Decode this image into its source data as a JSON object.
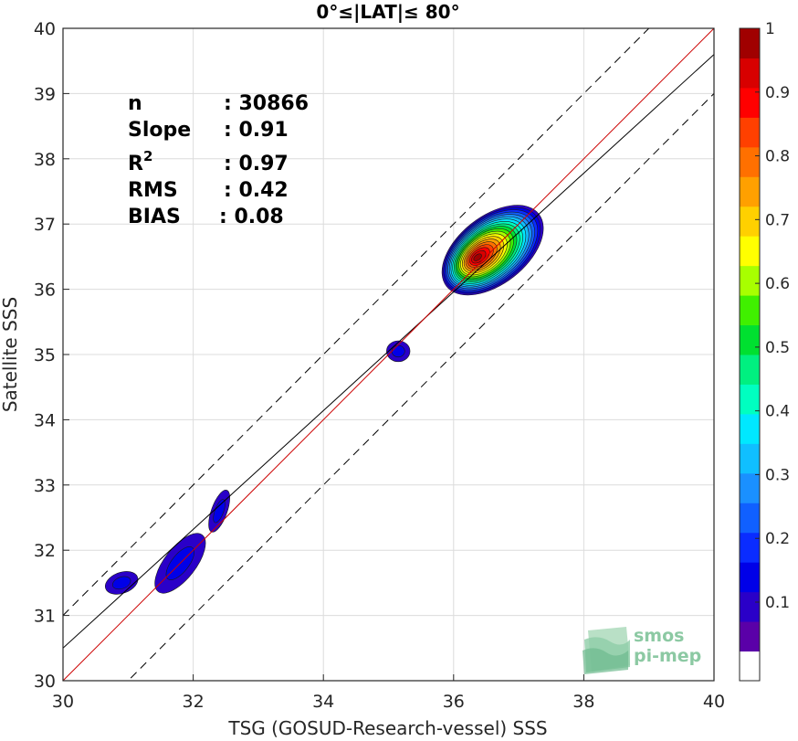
{
  "chart_data": {
    "type": "heatmap",
    "title": "0°≤|LAT|≤ 80°",
    "xlabel": "TSG (GOSUD-Research-vessel) SSS",
    "ylabel": "Satellite SSS",
    "xlim": [
      30,
      40
    ],
    "ylim": [
      30,
      40
    ],
    "xticks": [
      "30",
      "32",
      "34",
      "36",
      "38",
      "40"
    ],
    "yticks": [
      "30",
      "31",
      "32",
      "33",
      "34",
      "35",
      "36",
      "37",
      "38",
      "39",
      "40"
    ],
    "grid": true,
    "stats": [
      {
        "label": "n",
        "value": ": 30866"
      },
      {
        "label": "Slope",
        "value": ": 0.91"
      },
      {
        "label": "R",
        "sup": "2",
        "value": ": 0.97"
      },
      {
        "label": "RMS",
        "value": ": 0.42"
      },
      {
        "label": "BIAS",
        "value": ": 0.08"
      }
    ],
    "lines": {
      "one_to_one": {
        "slope": 1,
        "intercept": 0,
        "color": "#cc0000"
      },
      "regression": {
        "slope": 0.91,
        "intercept": 3.2,
        "color": "#000000"
      },
      "upper_bound": {
        "slope": 1,
        "intercept": 1.0,
        "style": "dashed"
      },
      "lower_bound": {
        "slope": 1,
        "intercept": -1.0,
        "style": "dashed"
      }
    },
    "density_clusters": [
      {
        "x": 30.9,
        "y": 31.5,
        "peak": 0.1
      },
      {
        "x": 31.8,
        "y": 31.8,
        "peak": 0.12
      },
      {
        "x": 32.4,
        "y": 32.6,
        "peak": 0.1
      },
      {
        "x": 35.15,
        "y": 35.05,
        "peak": 0.1
      },
      {
        "x": 36.6,
        "y": 36.6,
        "peak": 1.0
      }
    ],
    "colorbar": {
      "ticks": [
        "0.1",
        "0.2",
        "0.3",
        "0.4",
        "0.5",
        "0.6",
        "0.7",
        "0.8",
        "0.9",
        "1"
      ],
      "tick_values": [
        0.1,
        0.2,
        0.3,
        0.4,
        0.5,
        0.6,
        0.7,
        0.8,
        0.9,
        1.0
      ],
      "colors": [
        "#ffffff",
        "#5a00a8",
        "#2a00c8",
        "#0000e8",
        "#0a2cff",
        "#1060ff",
        "#1a90ff",
        "#10bfff",
        "#00e8ff",
        "#00ffc0",
        "#00f080",
        "#00e030",
        "#40f000",
        "#a8ff00",
        "#ffff00",
        "#ffd000",
        "#ffa000",
        "#ff7000",
        "#ff4000",
        "#ff0000",
        "#d80000",
        "#a00000"
      ]
    },
    "logo": {
      "line1": "smos",
      "line2": "pi-mep"
    }
  }
}
